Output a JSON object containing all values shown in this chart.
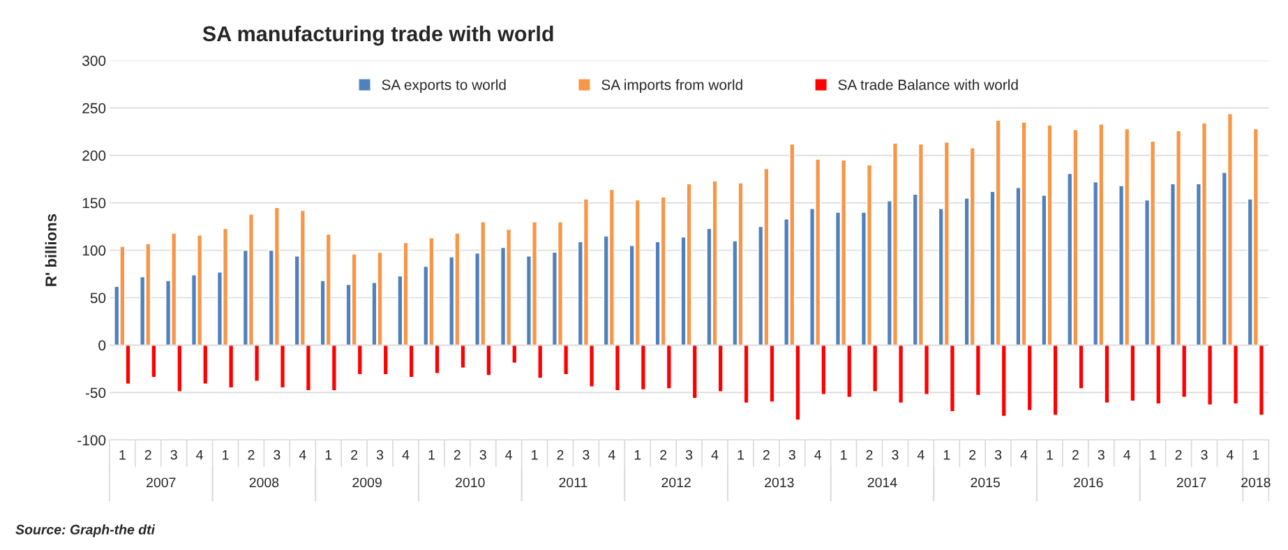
{
  "chart_data": {
    "type": "bar",
    "title": "SA manufacturing trade with world",
    "ylabel": "R' billions",
    "categories": [
      "1",
      "2",
      "3",
      "4",
      "1",
      "2",
      "3",
      "4",
      "1",
      "2",
      "3",
      "4",
      "1",
      "2",
      "3",
      "4",
      "1",
      "2",
      "3",
      "4",
      "1",
      "2",
      "3",
      "4",
      "1",
      "2",
      "3",
      "4",
      "1",
      "2",
      "3",
      "4",
      "1",
      "2",
      "3",
      "4",
      "1",
      "2",
      "3",
      "4",
      "1",
      "2",
      "3",
      "4",
      "1"
    ],
    "series": [
      {
        "name": "SA exports to world",
        "color": "#4f81bd",
        "values": [
          62,
          72,
          68,
          74,
          77,
          100,
          100,
          94,
          68,
          64,
          66,
          73,
          83,
          93,
          97,
          103,
          94,
          98,
          109,
          115,
          105,
          109,
          114,
          123,
          110,
          125,
          133,
          144,
          140,
          140,
          152,
          159,
          144,
          155,
          162,
          166,
          158,
          181,
          172,
          168,
          153,
          170,
          170,
          182,
          154
        ]
      },
      {
        "name": "SA imports from world",
        "color": "#f79646",
        "values": [
          104,
          107,
          118,
          116,
          123,
          138,
          145,
          142,
          117,
          96,
          98,
          108,
          113,
          118,
          130,
          122,
          130,
          130,
          154,
          164,
          153,
          156,
          170,
          173,
          171,
          186,
          212,
          196,
          195,
          190,
          213,
          212,
          214,
          208,
          237,
          235,
          232,
          227,
          233,
          228,
          215,
          226,
          234,
          244,
          228
        ]
      },
      {
        "name": "SA trade Balance with world",
        "color": "#ff0000",
        "values": [
          -41,
          -34,
          -49,
          -41,
          -45,
          -38,
          -45,
          -48,
          -48,
          -31,
          -31,
          -34,
          -30,
          -24,
          -32,
          -19,
          -35,
          -31,
          -44,
          -48,
          -47,
          -46,
          -56,
          -49,
          -61,
          -60,
          -79,
          -52,
          -55,
          -49,
          -61,
          -52,
          -70,
          -53,
          -75,
          -69,
          -74,
          -46,
          -61,
          -59,
          -62,
          -55,
          -63,
          -62,
          -74
        ]
      }
    ],
    "ylim": [
      -100,
      300
    ],
    "yticks": [
      -100,
      -50,
      0,
      50,
      100,
      150,
      200,
      250,
      300
    ],
    "grid": "y",
    "legend": "top",
    "annotations": [
      "2007",
      "2008",
      "2009",
      "2010",
      "2011",
      "2012",
      "2013",
      "2014",
      "2015",
      "2016",
      "2017",
      "2018",
      "Source: Graph-the dti"
    ]
  }
}
